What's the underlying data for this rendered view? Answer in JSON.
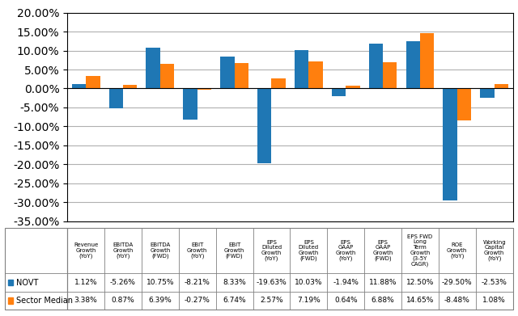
{
  "chart_data": {
    "type": "bar",
    "categories": [
      "Revenue\nGrowth\n(YoY)",
      "EBITDA\nGrowth\n(YoY)",
      "EBITDA\nGrowth\n(FWD)",
      "EBIT\nGrowth\n(YoY)",
      "EBIT\nGrowth\n(FWD)",
      "EPS\nDiluted\nGrowth\n(YoY)",
      "EPS\nDiluted\nGrowth\n(FWD)",
      "EPS\nGAAP\nGrowth\n(YoY)",
      "EPS\nGAAP\nGrowth\n(FWD)",
      "EPS FWD\nLong\nTerm\nGrowth\n(3-5Y\nCAGR)",
      "ROE\nGrowth\n(YoY)",
      "Working\nCapital\nGrowth\n(YoY)"
    ],
    "series": [
      {
        "name": "NOVT",
        "values": [
          1.12,
          -5.26,
          10.75,
          -8.21,
          8.33,
          -19.63,
          10.03,
          -1.94,
          11.88,
          12.5,
          -29.5,
          -2.53
        ],
        "value_labels": [
          "1.12%",
          "-5.26%",
          "10.75%",
          "-8.21%",
          "8.33%",
          "-19.63%",
          "10.03%",
          "-1.94%",
          "11.88%",
          "12.50%",
          "-29.50%",
          "-2.53%"
        ]
      },
      {
        "name": "Sector Median",
        "values": [
          3.38,
          0.87,
          6.39,
          -0.27,
          6.74,
          2.57,
          7.19,
          0.64,
          6.88,
          14.65,
          -8.48,
          1.08
        ],
        "value_labels": [
          "3.38%",
          "0.87%",
          "6.39%",
          "-0.27%",
          "6.74%",
          "2.57%",
          "7.19%",
          "0.64%",
          "6.88%",
          "14.65%",
          "-8.48%",
          "1.08%"
        ]
      }
    ],
    "ylim": [
      -35,
      20
    ],
    "yticks": [
      {
        "value": -35,
        "label": "-35.00%"
      },
      {
        "value": -30,
        "label": "-30.00%"
      },
      {
        "value": -25,
        "label": "-25.00%"
      },
      {
        "value": -20,
        "label": "-20.00%"
      },
      {
        "value": -15,
        "label": "-15.00%"
      },
      {
        "value": -10,
        "label": "-10.00%"
      },
      {
        "value": -5,
        "label": "-5.00%"
      },
      {
        "value": 0,
        "label": "0.00%"
      },
      {
        "value": 5,
        "label": "5.00%"
      },
      {
        "value": 10,
        "label": "10.00%"
      },
      {
        "value": 15,
        "label": "15.00%"
      },
      {
        "value": 20,
        "label": "20.00%"
      }
    ],
    "grid": true,
    "tick_labels": "y"
  }
}
